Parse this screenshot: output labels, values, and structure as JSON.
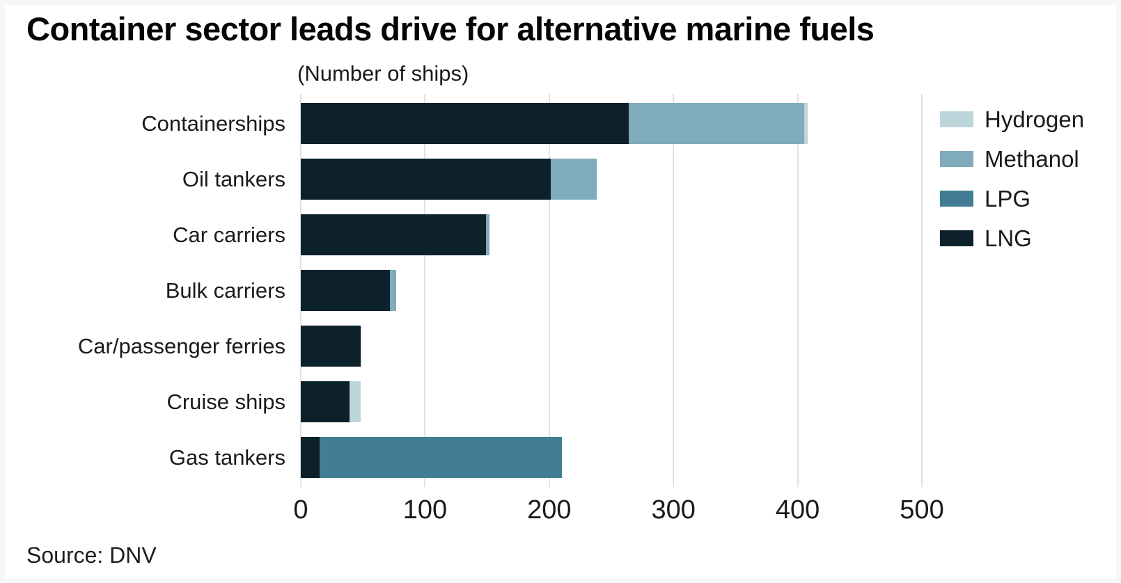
{
  "title": "Container sector leads drive for alternative marine fuels",
  "subtitle": "(Number of ships)",
  "source": "Source: DNV",
  "colors": {
    "hydrogen": "#bdd6dc",
    "methanol": "#7fabbc",
    "lpg": "#437d95",
    "lng": "#0d212b",
    "gridline": "#e2e2e2",
    "text": "#1a1a1a"
  },
  "chart_data": {
    "type": "bar",
    "orientation": "horizontal",
    "stacked": true,
    "title": "Container sector leads drive for alternative marine fuels",
    "subtitle": "(Number of ships)",
    "xlabel": "",
    "ylabel": "",
    "xlim": [
      0,
      500
    ],
    "x_ticks": [
      0,
      100,
      200,
      300,
      400,
      500
    ],
    "grid": true,
    "legend_position": "right",
    "categories": [
      "Containerships",
      "Oil tankers",
      "Car carriers",
      "Bulk carriers",
      "Car/passenger ferries",
      "Cruise ships",
      "Gas tankers"
    ],
    "series": [
      {
        "name": "Hydrogen",
        "color": "#bdd6dc",
        "values": [
          3,
          0,
          0,
          0,
          1,
          9,
          0
        ]
      },
      {
        "name": "Methanol",
        "color": "#7fabbc",
        "values": [
          141,
          37,
          3,
          5,
          0,
          0,
          0
        ]
      },
      {
        "name": "LPG",
        "color": "#437d95",
        "values": [
          0,
          0,
          0,
          0,
          0,
          0,
          195
        ]
      },
      {
        "name": "LNG",
        "color": "#0d212b",
        "values": [
          264,
          201,
          149,
          72,
          48,
          39,
          15
        ]
      }
    ],
    "stack_order": [
      "LNG",
      "LPG",
      "Methanol",
      "Hydrogen"
    ],
    "totals": [
      408,
      238,
      152,
      77,
      49,
      48,
      210
    ]
  }
}
